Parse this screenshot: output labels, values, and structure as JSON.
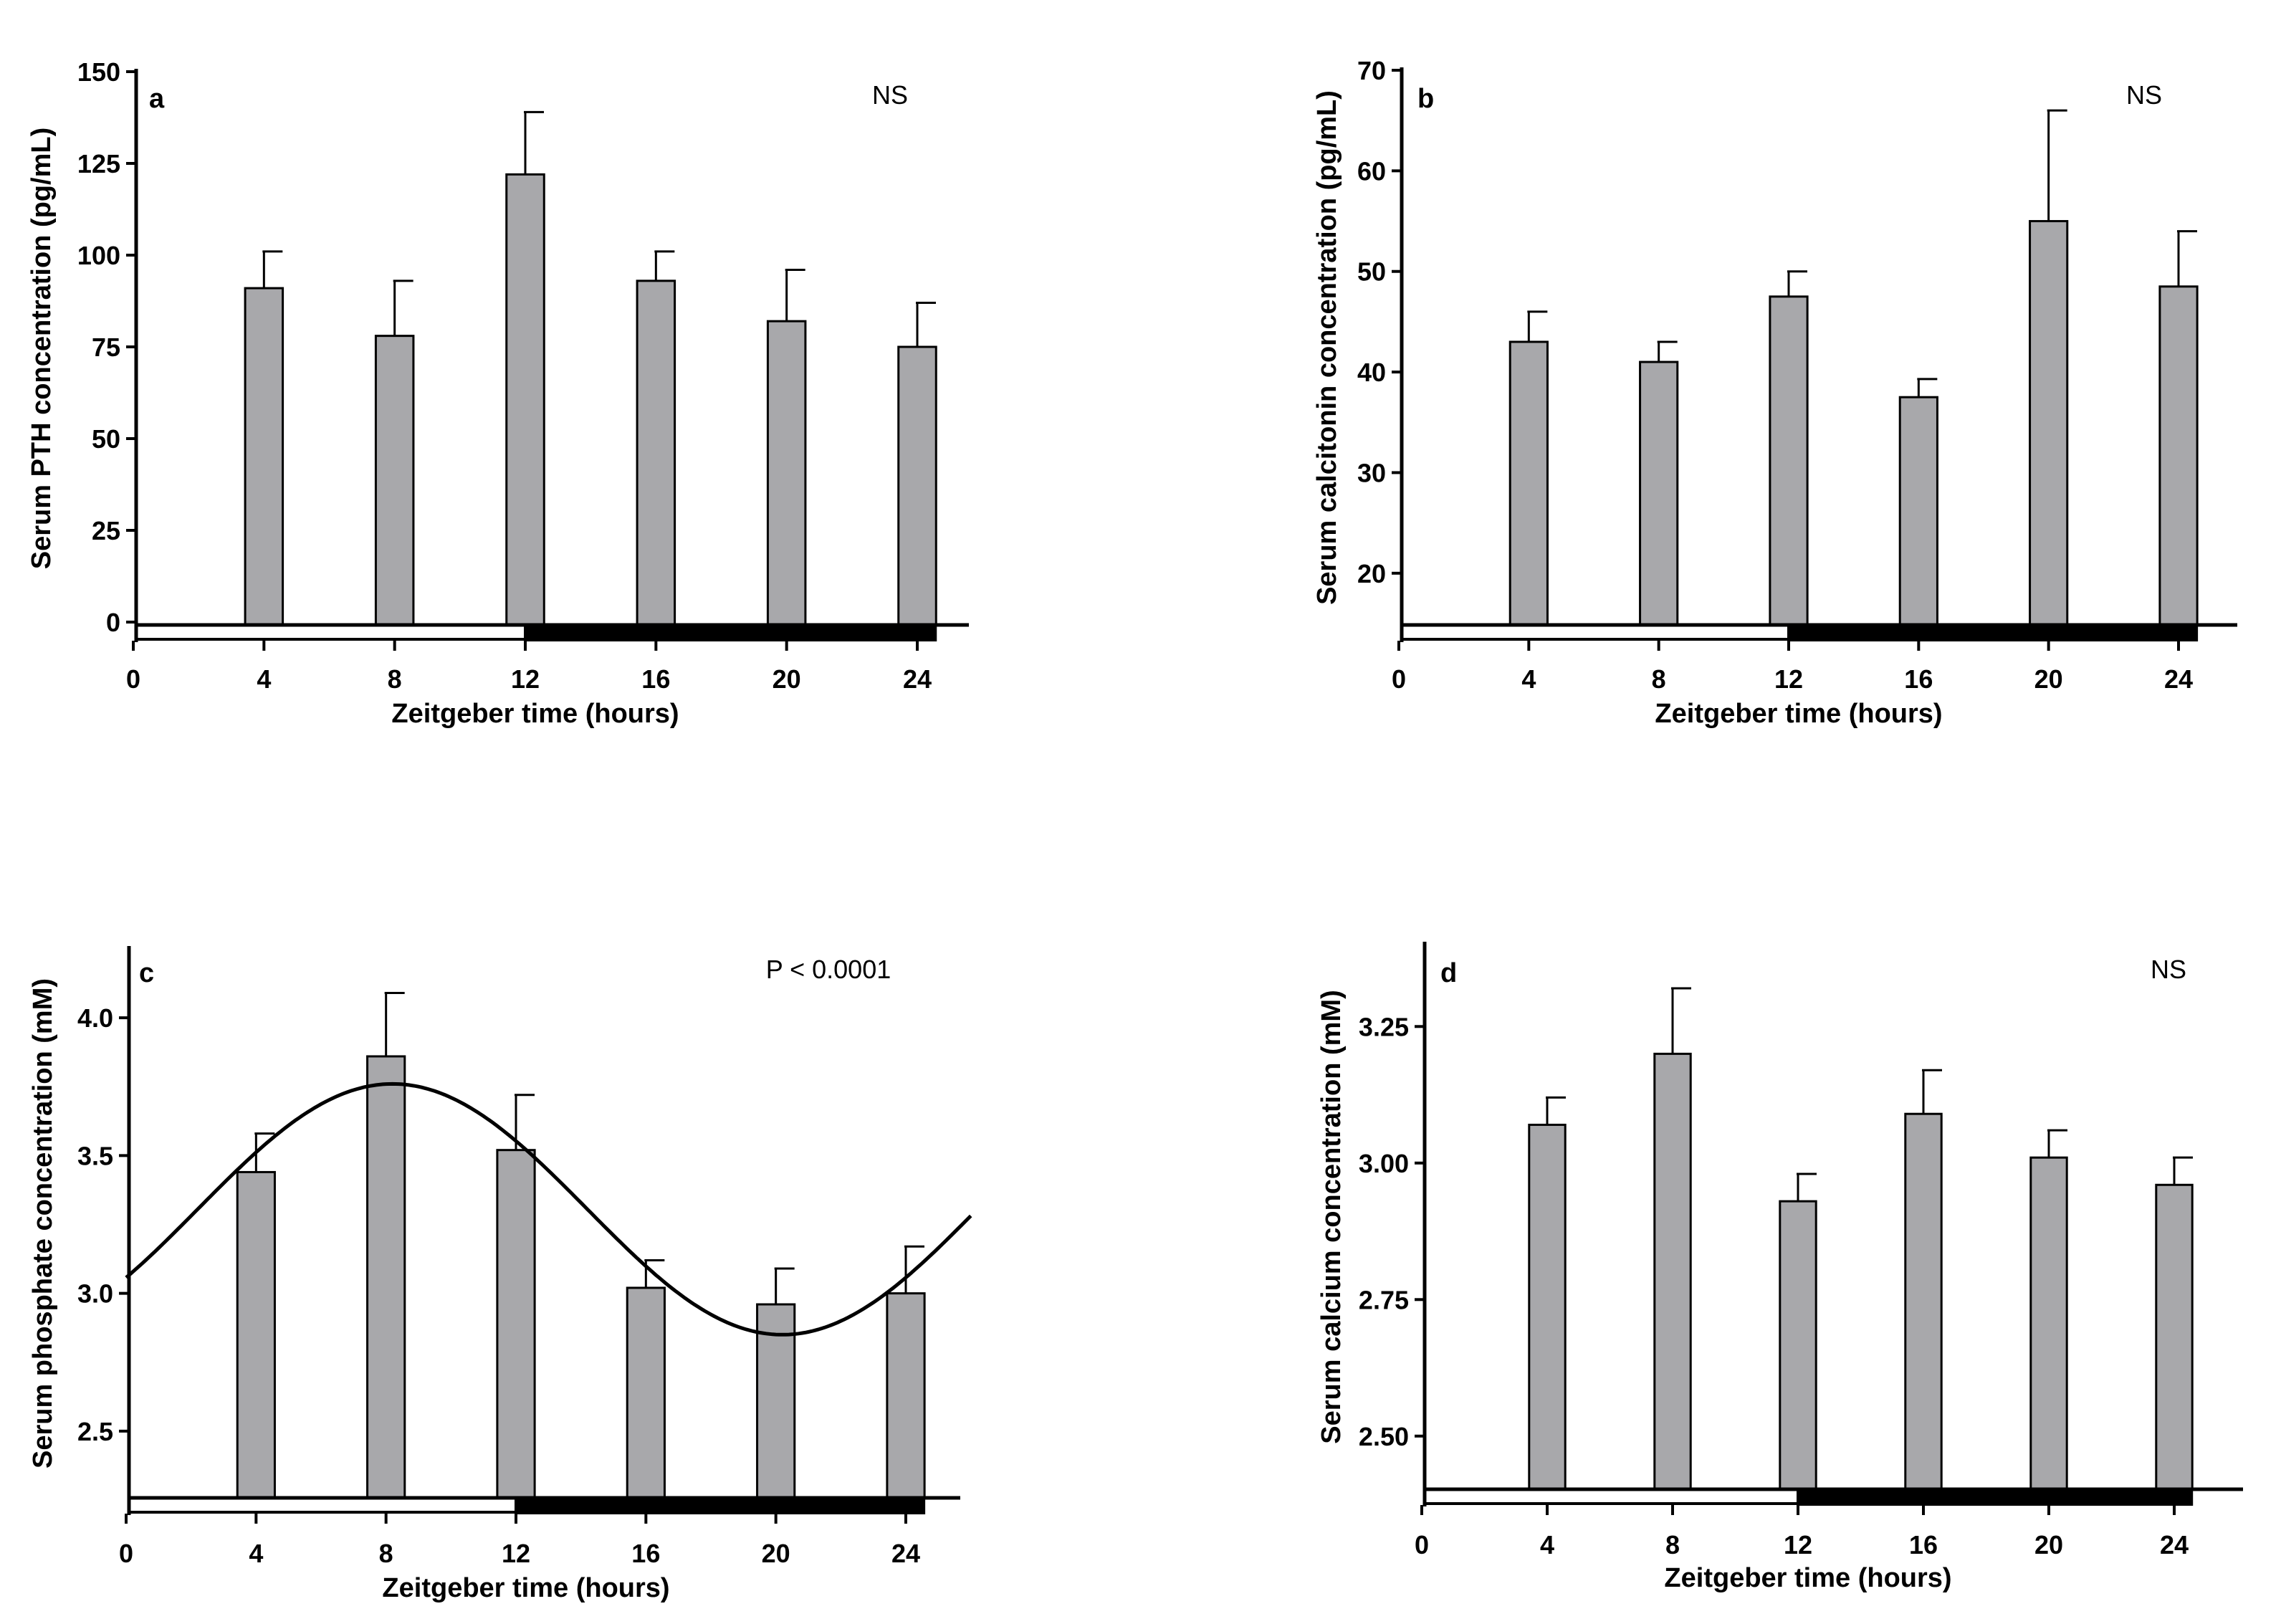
{
  "chart_data": [
    {
      "panel": "a",
      "type": "bar",
      "x": [
        4,
        8,
        12,
        16,
        20,
        24
      ],
      "values": [
        91,
        78,
        122,
        93,
        82,
        75
      ],
      "errors": [
        10,
        15,
        17,
        8,
        14,
        12
      ],
      "xticks": [
        0,
        4,
        8,
        12,
        16,
        20,
        24
      ],
      "xtick_labels": [
        "0",
        "4",
        "8",
        "12",
        "16",
        "20",
        "24"
      ],
      "yticks": [
        0,
        25,
        50,
        75,
        100,
        125,
        150
      ],
      "ytick_labels": [
        "0",
        "25",
        "50",
        "75",
        "100",
        "125",
        "150"
      ],
      "ylim": [
        0,
        150
      ],
      "xlabel": "Zeitgeber time (hours)",
      "ylabel": "Serum PTH concentration (pg/mL)",
      "annotation": "NS",
      "light_phase": [
        0,
        12
      ],
      "dark_phase": [
        12,
        24
      ]
    },
    {
      "panel": "b",
      "type": "bar",
      "x": [
        4,
        8,
        12,
        16,
        20,
        24
      ],
      "values": [
        43,
        41,
        47.5,
        37.5,
        55,
        48.5
      ],
      "errors": [
        3,
        2,
        2.5,
        1.8,
        11,
        5.5
      ],
      "xticks": [
        0,
        4,
        8,
        12,
        16,
        20,
        24
      ],
      "xtick_labels": [
        "0",
        "4",
        "8",
        "12",
        "16",
        "20",
        "24"
      ],
      "yticks": [
        20,
        30,
        40,
        50,
        60,
        70
      ],
      "ytick_labels": [
        "20",
        "30",
        "40",
        "50",
        "60",
        "70"
      ],
      "ylim": [
        15,
        70
      ],
      "xlabel": "Zeitgeber time (hours)",
      "ylabel": "Serum calcitonin concentration (pg/mL)",
      "annotation": "NS",
      "light_phase": [
        0,
        12
      ],
      "dark_phase": [
        12,
        24
      ]
    },
    {
      "panel": "c",
      "type": "bar",
      "x": [
        4,
        8,
        12,
        16,
        20,
        24
      ],
      "values": [
        3.44,
        3.86,
        3.52,
        3.02,
        2.96,
        3.0
      ],
      "errors": [
        0.14,
        0.23,
        0.2,
        0.1,
        0.13,
        0.17
      ],
      "xticks": [
        0,
        4,
        8,
        12,
        16,
        20,
        24
      ],
      "xtick_labels": [
        "0",
        "4",
        "8",
        "12",
        "16",
        "20",
        "24"
      ],
      "yticks": [
        2.5,
        3.0,
        3.5,
        4.0
      ],
      "ytick_labels": [
        "2.5",
        "3.0",
        "3.5",
        "4.0"
      ],
      "ylim": [
        2.25,
        4.25
      ],
      "xlabel": "Zeitgeber time (hours)",
      "ylabel": "Serum phosphate concentration (mM)",
      "annotation": "P < 0.0001",
      "fit": {
        "type": "cosinor",
        "mesor": 3.305,
        "amplitude": 0.455,
        "acrophase_hours": 8.2,
        "period_hours": 24,
        "x_range": [
          0,
          26
        ]
      },
      "light_phase": [
        0,
        12
      ],
      "dark_phase": [
        12,
        24
      ]
    },
    {
      "panel": "d",
      "type": "bar",
      "x": [
        4,
        8,
        12,
        16,
        20,
        24
      ],
      "values": [
        3.07,
        3.2,
        2.93,
        3.09,
        3.01,
        2.96
      ],
      "errors": [
        0.05,
        0.12,
        0.05,
        0.08,
        0.05,
        0.05
      ],
      "xticks": [
        0,
        4,
        8,
        12,
        16,
        20,
        24
      ],
      "xtick_labels": [
        "0",
        "4",
        "8",
        "12",
        "16",
        "20",
        "24"
      ],
      "yticks": [
        2.5,
        2.75,
        3.0,
        3.25
      ],
      "ytick_labels": [
        "2.50",
        "2.75",
        "3.00",
        "3.25"
      ],
      "ylim": [
        2.4,
        3.4
      ],
      "xlabel": "Zeitgeber time (hours)",
      "ylabel": "Serum calcium concentration (mM)",
      "annotation": "NS",
      "light_phase": [
        0,
        12
      ],
      "dark_phase": [
        12,
        24
      ]
    }
  ],
  "style": {
    "bar_fill": "#a8a8ab",
    "bar_stroke": "#000000",
    "light_bar_fill": "#ffffff",
    "dark_bar_fill": "#000000"
  }
}
